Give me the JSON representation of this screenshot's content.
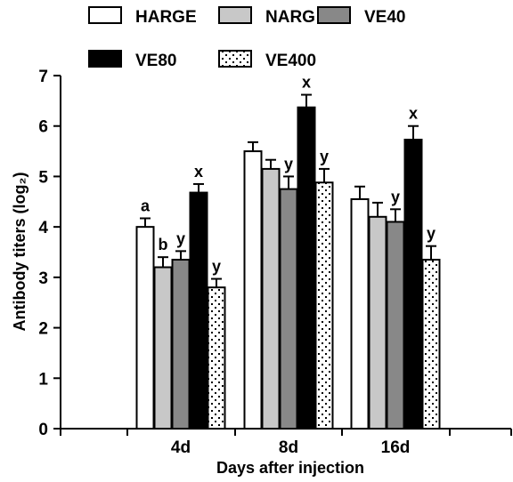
{
  "chart_data": {
    "type": "bar",
    "categories": [
      "4d",
      "8d",
      "16d"
    ],
    "xlabel": "Days after injection",
    "ylabel": "Antibody titers (log₂)",
    "ylim": [
      0,
      7
    ],
    "yticks": [
      0,
      1,
      2,
      3,
      4,
      5,
      6,
      7
    ],
    "grid": false,
    "legend_position": "top",
    "series": [
      {
        "name": "HARGE",
        "fill": "#ffffff",
        "pattern": "solid",
        "values": [
          4.0,
          5.5,
          4.55
        ],
        "errors": [
          0.17,
          0.18,
          0.25
        ],
        "labels": [
          "a",
          "",
          ""
        ]
      },
      {
        "name": "NARG",
        "fill": "#c8c8c8",
        "pattern": "solid",
        "values": [
          3.2,
          5.15,
          4.2
        ],
        "errors": [
          0.2,
          0.18,
          0.28
        ],
        "labels": [
          "b",
          "",
          ""
        ]
      },
      {
        "name": "VE40",
        "fill": "#888888",
        "pattern": "solid",
        "values": [
          3.35,
          4.75,
          4.1
        ],
        "errors": [
          0.17,
          0.25,
          0.25
        ],
        "labels": [
          "y",
          "y",
          "y"
        ]
      },
      {
        "name": "VE80",
        "fill": "#000000",
        "pattern": "solid",
        "values": [
          4.68,
          6.37,
          5.73
        ],
        "errors": [
          0.17,
          0.25,
          0.27
        ],
        "labels": [
          "x",
          "x",
          "x"
        ]
      },
      {
        "name": "VE400",
        "fill": "#ffffff",
        "pattern": "dotted",
        "values": [
          2.8,
          4.88,
          3.35
        ],
        "errors": [
          0.17,
          0.27,
          0.27
        ],
        "labels": [
          "y",
          "y",
          "y"
        ]
      }
    ]
  }
}
